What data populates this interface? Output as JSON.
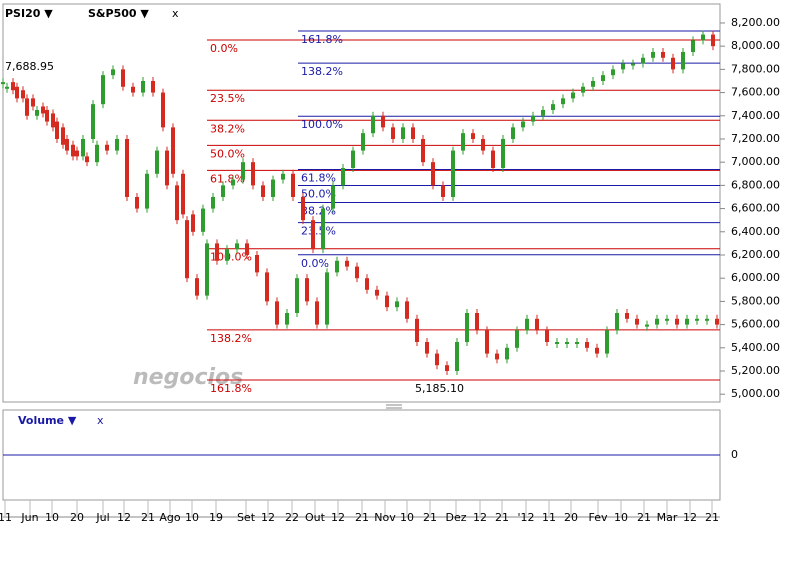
{
  "chart_data": {
    "type": "candlestick",
    "header": {
      "series_a": "PSI20 ▼",
      "series_b": "S&P500 ▼",
      "close": "x"
    },
    "ylim": [
      4950,
      8260
    ],
    "yticks": [
      {
        "value": 5000,
        "label": "5,000.00"
      },
      {
        "value": 5200,
        "label": "5,200.00"
      },
      {
        "value": 5400,
        "label": "5,400.00"
      },
      {
        "value": 5600,
        "label": "5,600.00"
      },
      {
        "value": 5800,
        "label": "5,800.00"
      },
      {
        "value": 6000,
        "label": "6,000.00"
      },
      {
        "value": 6200,
        "label": "6,200.00"
      },
      {
        "value": 6400,
        "label": "6,400.00"
      },
      {
        "value": 6600,
        "label": "6,600.00"
      },
      {
        "value": 6800,
        "label": "6,800.00"
      },
      {
        "value": 7000,
        "label": "7,000.00"
      },
      {
        "value": 7200,
        "label": "7,200.00"
      },
      {
        "value": 7400,
        "label": "7,400.00"
      },
      {
        "value": 7600,
        "label": "7,600.00"
      },
      {
        "value": 7800,
        "label": "7,800.00"
      },
      {
        "value": 8000,
        "label": "8,000.00"
      },
      {
        "value": 8200,
        "label": "8,200.00"
      }
    ],
    "x_labels": [
      "11",
      "Jun",
      "10",
      "20",
      "Jul",
      "12",
      "21",
      "Ago",
      "10",
      "19",
      "Set",
      "12",
      "22",
      "Out",
      "12",
      "21",
      "Nov",
      "10",
      "21",
      "Dez",
      "12",
      "21",
      "'12",
      "11",
      "20",
      "Fev",
      "10",
      "21",
      "Mar",
      "12",
      "21"
    ],
    "up_color": "#2e9c2e",
    "down_color": "#d42a1f",
    "series": [
      {
        "name": "S&P500",
        "values": [
          7690,
          7620,
          7550,
          7480,
          7420,
          7300,
          7150,
          7050,
          7200,
          7500,
          7750,
          7800,
          7650,
          7600,
          7700,
          7600,
          7300,
          6900,
          6550,
          6400,
          6600,
          6700,
          6800,
          6850,
          7000,
          6800,
          6700,
          6850,
          6900,
          6700,
          6500,
          6250,
          6600,
          6800,
          6950,
          7100,
          7250,
          7400,
          7300,
          7200,
          7300,
          7200,
          7000,
          6800,
          6700,
          7100,
          7250,
          7200,
          7100,
          6950,
          7200,
          7300,
          7350,
          7400,
          7450,
          7500,
          7550,
          7600,
          7650,
          7700,
          7750,
          7800,
          7850,
          7850,
          7900,
          7950,
          7900,
          7800,
          7950,
          8050,
          8100,
          8000
        ]
      },
      {
        "name": "PSI20",
        "values": [
          7650,
          7550,
          7400,
          7450,
          7350,
          7200,
          7100,
          7050,
          7000,
          7150,
          7100,
          7200,
          6700,
          6600,
          6900,
          7100,
          6800,
          6500,
          6000,
          5850,
          6300,
          6150,
          6250,
          6300,
          6200,
          6050,
          5800,
          5600,
          5700,
          6000,
          5800,
          5600,
          6050,
          6150,
          6100,
          6000,
          5900,
          5850,
          5750,
          5800,
          5650,
          5450,
          5350,
          5250,
          5200,
          5450,
          5700,
          5550,
          5350,
          5300,
          5400,
          5550,
          5650,
          5550,
          5450,
          5450,
          5450,
          5450,
          5400,
          5350,
          5550,
          5700,
          5650,
          5600,
          5600,
          5650,
          5650,
          5600,
          5650,
          5650,
          5650,
          5600
        ]
      }
    ],
    "fib_levels": [
      {
        "color": "#cc0000",
        "levels": [
          {
            "label": "0.0%",
            "value": 8053
          },
          {
            "label": "23.5%",
            "value": 7620
          },
          {
            "label": "38.2%",
            "value": 7361
          },
          {
            "label": "50.0%",
            "value": 7145
          },
          {
            "label": "61.8%",
            "value": 6929
          },
          {
            "label": "100.0%",
            "value": 6254
          },
          {
            "label": "138.2%",
            "value": 5554
          },
          {
            "label": "161.8%",
            "value": 5122
          }
        ]
      },
      {
        "color": "#1a1aa6",
        "levels": [
          {
            "label": "161.8%",
            "value": 8131
          },
          {
            "label": "138.2%",
            "value": 7854
          },
          {
            "label": "100.0%",
            "value": 7396
          },
          {
            "label": "61.8%",
            "value": 6937
          },
          {
            "label": "50.0%",
            "value": 6799
          },
          {
            "label": "38.2%",
            "value": 6652
          },
          {
            "label": "23.5%",
            "value": 6479
          },
          {
            "label": "0.0%",
            "value": 6202
          }
        ]
      }
    ],
    "annotations": [
      "7,688.95",
      "5,185.10"
    ],
    "watermark": "negocios",
    "volume": {
      "title": "Volume ▼",
      "close": "x",
      "yticks": [
        0
      ]
    }
  }
}
